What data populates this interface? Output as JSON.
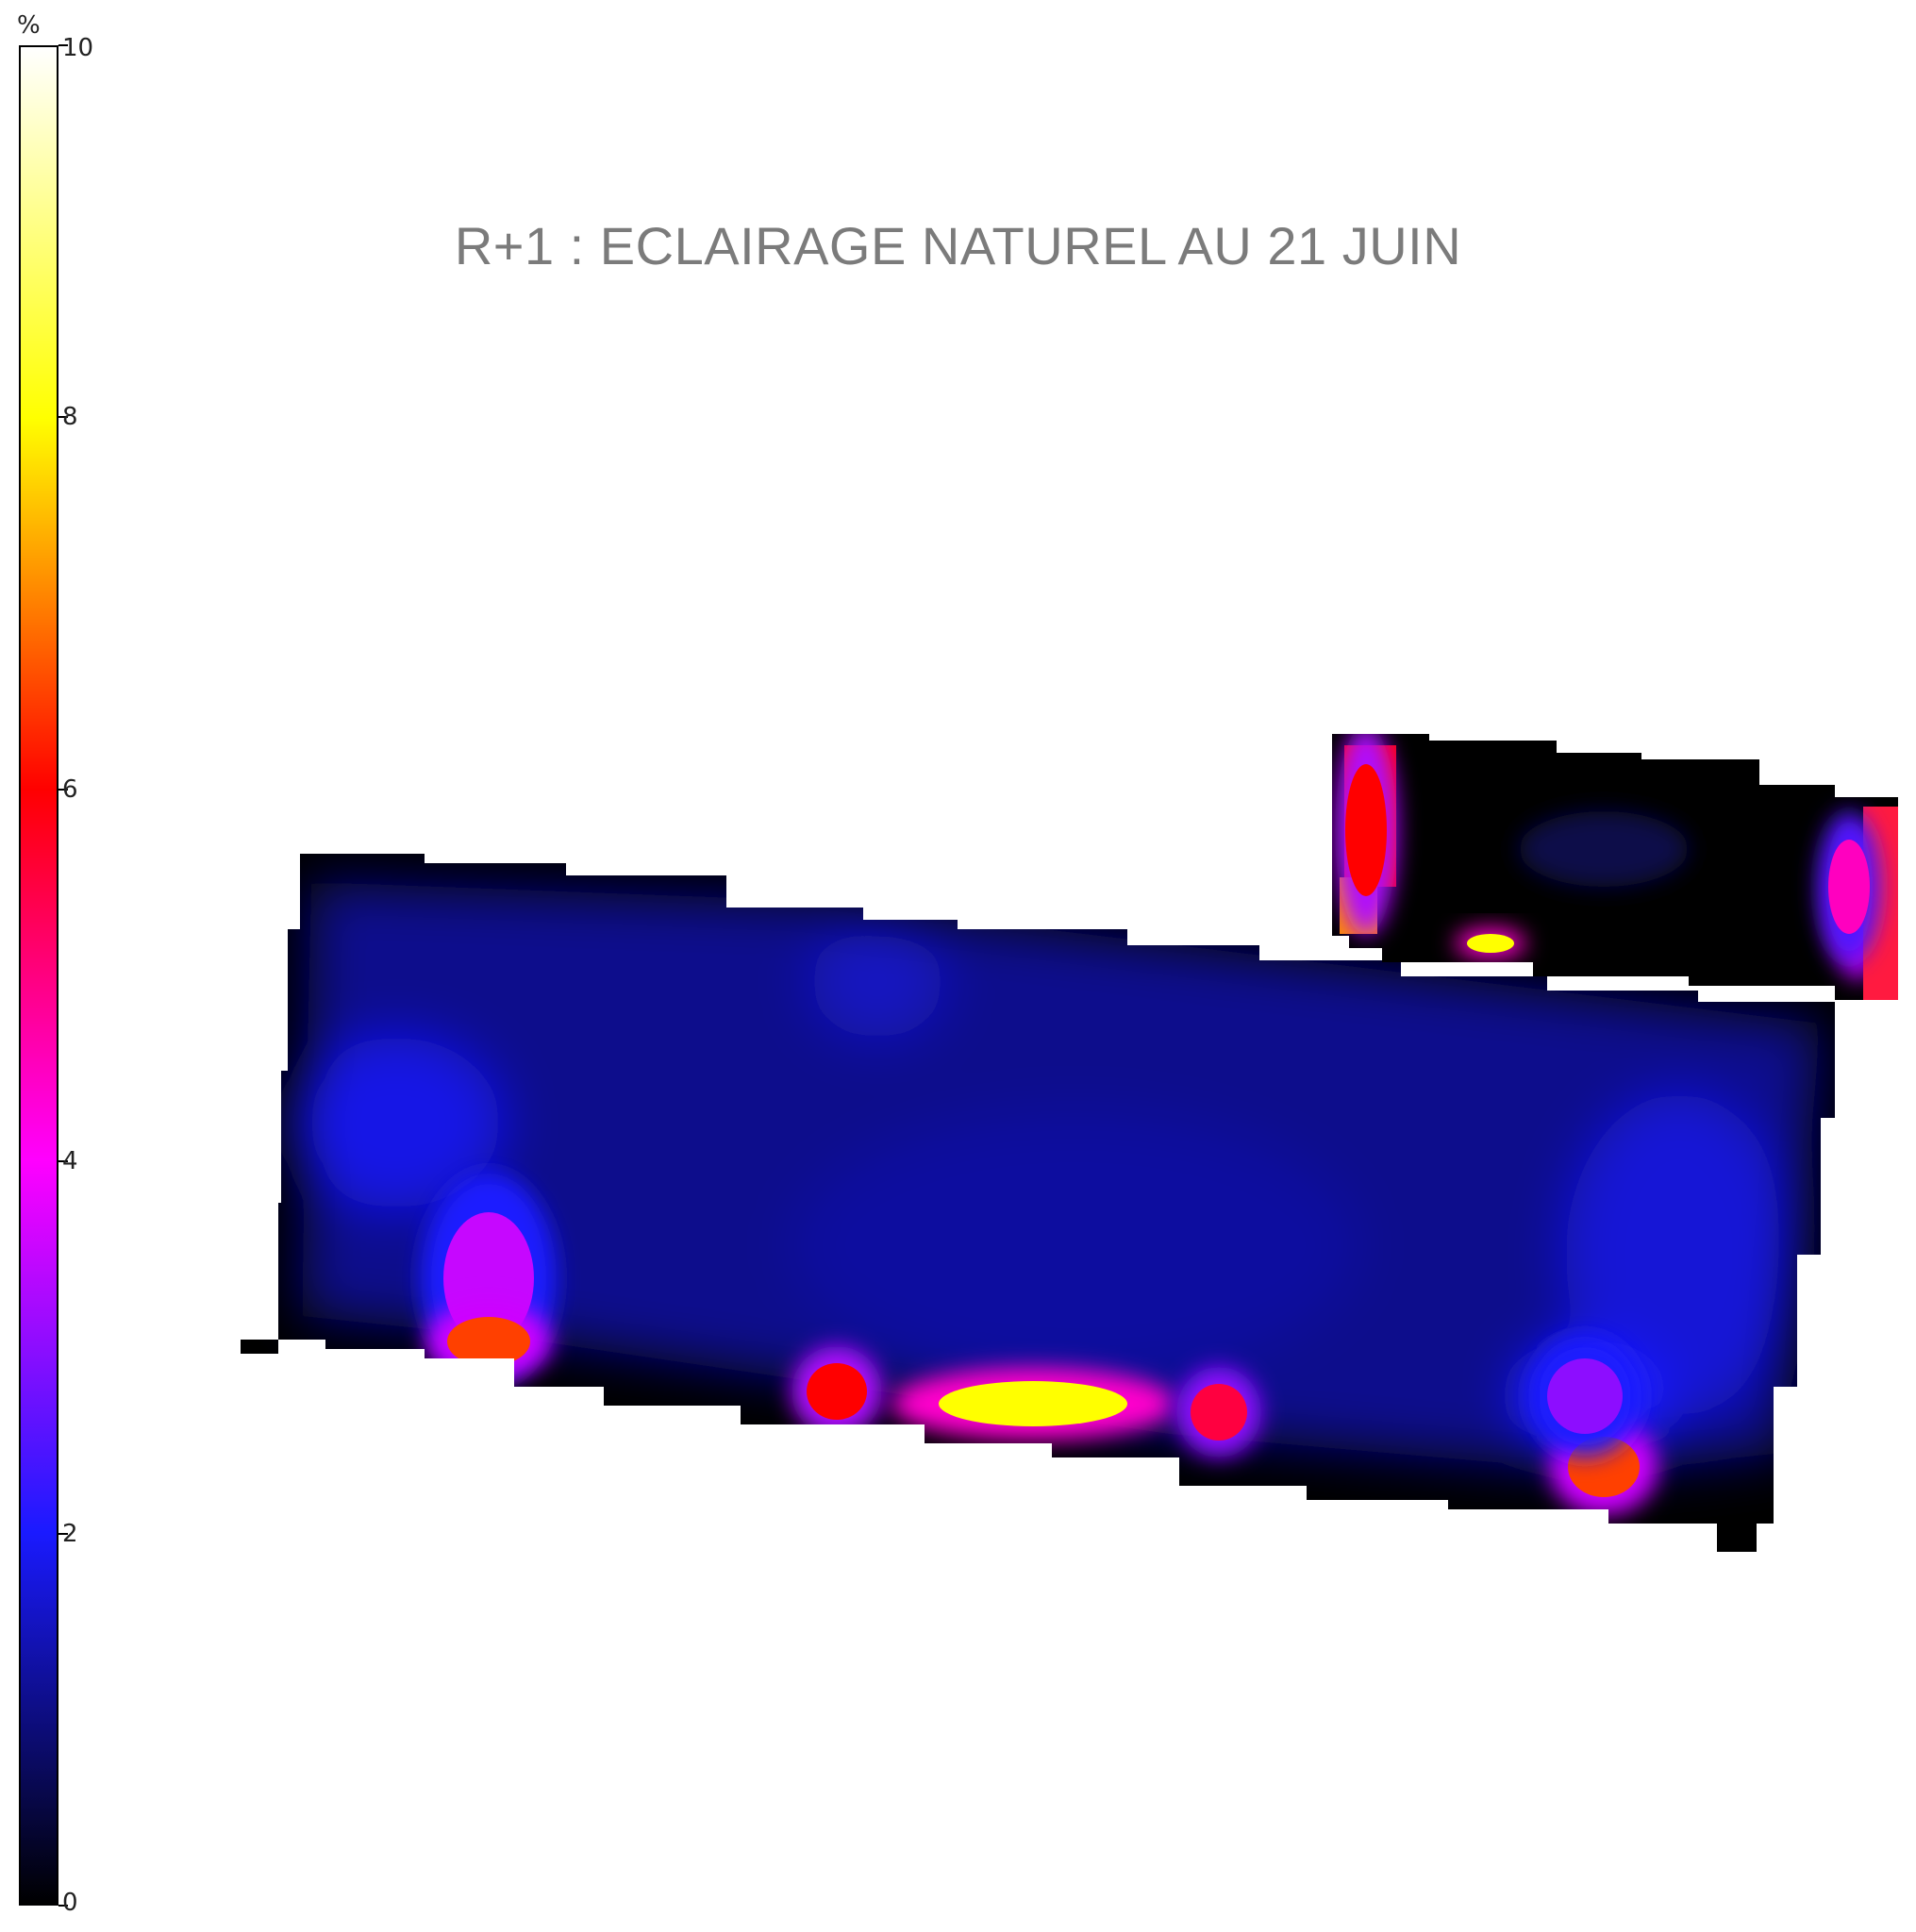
{
  "title": "R+1 : ECLAIRAGE NATUREL AU 21 JUIN",
  "colorbar": {
    "unit": "%",
    "min": 0,
    "max": 10,
    "ticks": [
      "0",
      "2",
      "4",
      "6",
      "8",
      "10"
    ],
    "stops": [
      {
        "value": 0,
        "color": "#000000"
      },
      {
        "value": 2,
        "color": "#1a1aff"
      },
      {
        "value": 4,
        "color": "#ff00ff"
      },
      {
        "value": 6,
        "color": "#ff0000"
      },
      {
        "value": 8,
        "color": "#ffff00"
      },
      {
        "value": 10,
        "color": "#ffffff"
      }
    ]
  },
  "chart_data": {
    "type": "heatmap",
    "title": "R+1 : ECLAIRAGE NATUREL AU 21 JUIN",
    "colorbar_label": "%",
    "value_range": [
      0,
      10
    ],
    "regions": [
      {
        "name": "main-floor-west",
        "typical_value": 1.3,
        "hotspots": [
          {
            "value": 3.5
          },
          {
            "value": 6.5
          }
        ]
      },
      {
        "name": "main-floor-east",
        "typical_value": 1.2,
        "hotspots": [
          {
            "value": 6.0
          },
          {
            "value": 8.0
          },
          {
            "value": 5.5
          },
          {
            "value": 6.5
          },
          {
            "value": 3.0
          }
        ]
      },
      {
        "name": "annex-north-east",
        "typical_value": 0.4,
        "hotspots": [
          {
            "value": 6.0
          },
          {
            "value": 4.5
          },
          {
            "value": 8.0
          }
        ]
      }
    ]
  }
}
